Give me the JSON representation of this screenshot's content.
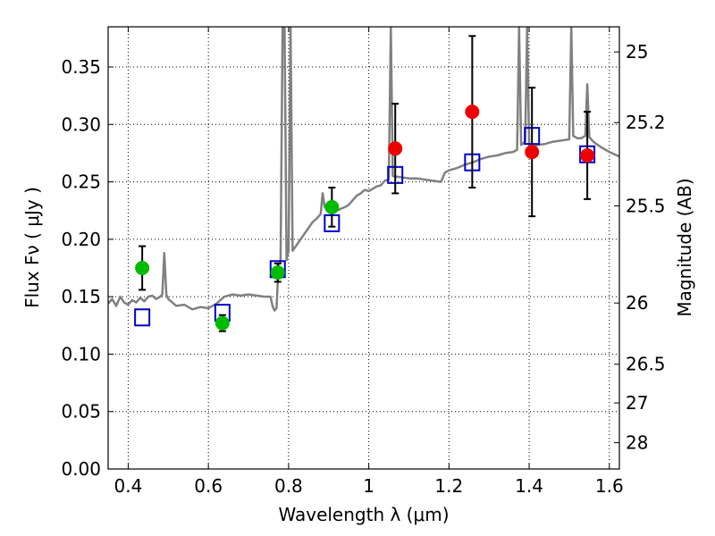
{
  "chart_data": {
    "type": "scatter",
    "xlabel": "Wavelength  λ (μm)",
    "ylabel": "Flux  Fν  ( μJy )",
    "ylabel_right": "Magnitude (AB)",
    "xlim": [
      0.35,
      1.625
    ],
    "ylim": [
      0.0,
      0.385
    ],
    "grid": true,
    "x_ticks": [
      {
        "value": 0.4,
        "label": "0.4"
      },
      {
        "value": 0.6,
        "label": "0.6"
      },
      {
        "value": 0.8,
        "label": "0.8"
      },
      {
        "value": 1.0,
        "label": "1"
      },
      {
        "value": 1.2,
        "label": "1.2"
      },
      {
        "value": 1.4,
        "label": "1.4"
      },
      {
        "value": 1.6,
        "label": "1.6"
      }
    ],
    "y_ticks": [
      {
        "value": 0.0,
        "label": "0.00"
      },
      {
        "value": 0.05,
        "label": "0.05"
      },
      {
        "value": 0.1,
        "label": "0.10"
      },
      {
        "value": 0.15,
        "label": "0.15"
      },
      {
        "value": 0.2,
        "label": "0.20"
      },
      {
        "value": 0.25,
        "label": "0.25"
      },
      {
        "value": 0.3,
        "label": "0.30"
      },
      {
        "value": 0.35,
        "label": "0.35"
      }
    ],
    "right_ticks": [
      {
        "flux": 0.3631,
        "label": "25"
      },
      {
        "flux": 0.3016,
        "label": "25.2"
      },
      {
        "flux": 0.2291,
        "label": "25.5"
      },
      {
        "flux": 0.1445,
        "label": "26"
      },
      {
        "flux": 0.0912,
        "label": "26.5"
      },
      {
        "flux": 0.0575,
        "label": "27"
      },
      {
        "flux": 0.0229,
        "label": "28"
      }
    ],
    "series": [
      {
        "kind": "line",
        "color": "#808080",
        "points": [
          [
            0.35,
            0.144
          ],
          [
            0.36,
            0.148
          ],
          [
            0.37,
            0.142
          ],
          [
            0.38,
            0.15
          ],
          [
            0.39,
            0.145
          ],
          [
            0.4,
            0.143
          ],
          [
            0.41,
            0.147
          ],
          [
            0.42,
            0.145
          ],
          [
            0.43,
            0.149
          ],
          [
            0.44,
            0.146
          ],
          [
            0.45,
            0.15
          ],
          [
            0.46,
            0.151
          ],
          [
            0.47,
            0.148
          ],
          [
            0.48,
            0.15
          ],
          [
            0.485,
            0.152
          ],
          [
            0.49,
            0.188
          ],
          [
            0.495,
            0.152
          ],
          [
            0.5,
            0.148
          ],
          [
            0.52,
            0.142
          ],
          [
            0.54,
            0.143
          ],
          [
            0.56,
            0.139
          ],
          [
            0.58,
            0.141
          ],
          [
            0.6,
            0.14
          ],
          [
            0.62,
            0.144
          ],
          [
            0.64,
            0.15
          ],
          [
            0.66,
            0.152
          ],
          [
            0.68,
            0.151
          ],
          [
            0.7,
            0.152
          ],
          [
            0.72,
            0.151
          ],
          [
            0.74,
            0.15
          ],
          [
            0.755,
            0.15
          ],
          [
            0.76,
            0.142
          ],
          [
            0.765,
            0.138
          ],
          [
            0.77,
            0.14
          ],
          [
            0.775,
            0.178
          ],
          [
            0.78,
            0.18
          ],
          [
            0.785,
            0.385
          ],
          [
            0.79,
            0.385
          ],
          [
            0.795,
            0.182
          ],
          [
            0.8,
            0.19
          ],
          [
            0.805,
            0.385
          ],
          [
            0.81,
            0.19
          ],
          [
            0.82,
            0.195
          ],
          [
            0.83,
            0.2
          ],
          [
            0.84,
            0.205
          ],
          [
            0.85,
            0.21
          ],
          [
            0.86,
            0.215
          ],
          [
            0.87,
            0.218
          ],
          [
            0.88,
            0.222
          ],
          [
            0.885,
            0.24
          ],
          [
            0.89,
            0.228
          ],
          [
            0.9,
            0.226
          ],
          [
            0.92,
            0.225
          ],
          [
            0.94,
            0.228
          ],
          [
            0.95,
            0.23
          ],
          [
            0.96,
            0.234
          ],
          [
            0.97,
            0.238
          ],
          [
            0.98,
            0.24
          ],
          [
            0.99,
            0.243
          ],
          [
            1.0,
            0.242
          ],
          [
            1.01,
            0.244
          ],
          [
            1.02,
            0.246
          ],
          [
            1.03,
            0.247
          ],
          [
            1.04,
            0.251
          ],
          [
            1.05,
            0.252
          ],
          [
            1.055,
            0.385
          ],
          [
            1.06,
            0.255
          ],
          [
            1.08,
            0.254
          ],
          [
            1.1,
            0.253
          ],
          [
            1.12,
            0.253
          ],
          [
            1.14,
            0.252
          ],
          [
            1.16,
            0.251
          ],
          [
            1.18,
            0.25
          ],
          [
            1.19,
            0.258
          ],
          [
            1.2,
            0.26
          ],
          [
            1.22,
            0.262
          ],
          [
            1.24,
            0.265
          ],
          [
            1.26,
            0.267
          ],
          [
            1.28,
            0.27
          ],
          [
            1.3,
            0.272
          ],
          [
            1.32,
            0.273
          ],
          [
            1.34,
            0.275
          ],
          [
            1.36,
            0.276
          ],
          [
            1.37,
            0.278
          ],
          [
            1.375,
            0.385
          ],
          [
            1.38,
            0.282
          ],
          [
            1.39,
            0.285
          ],
          [
            1.395,
            0.385
          ],
          [
            1.4,
            0.28
          ],
          [
            1.42,
            0.282
          ],
          [
            1.44,
            0.283
          ],
          [
            1.46,
            0.285
          ],
          [
            1.48,
            0.286
          ],
          [
            1.5,
            0.287
          ],
          [
            1.505,
            0.385
          ],
          [
            1.51,
            0.29
          ],
          [
            1.52,
            0.288
          ],
          [
            1.53,
            0.288
          ],
          [
            1.54,
            0.29
          ],
          [
            1.545,
            0.335
          ],
          [
            1.55,
            0.289
          ],
          [
            1.56,
            0.285
          ],
          [
            1.58,
            0.28
          ],
          [
            1.6,
            0.276
          ],
          [
            1.625,
            0.272
          ]
        ]
      },
      {
        "kind": "open_square",
        "color": "#0000cc",
        "points": [
          [
            0.435,
            0.132
          ],
          [
            0.635,
            0.136
          ],
          [
            0.773,
            0.174
          ],
          [
            0.908,
            0.214
          ],
          [
            1.066,
            0.256
          ],
          [
            1.258,
            0.267
          ],
          [
            1.407,
            0.29
          ],
          [
            1.545,
            0.274
          ]
        ]
      },
      {
        "kind": "filled_circle",
        "color": "#00bb00",
        "points": [
          {
            "x": 0.435,
            "y": 0.175,
            "err": 0.019
          },
          {
            "x": 0.635,
            "y": 0.127,
            "err": 0.007
          },
          {
            "x": 0.773,
            "y": 0.171,
            "err": 0.008
          },
          {
            "x": 0.908,
            "y": 0.228,
            "err": 0.017
          }
        ]
      },
      {
        "kind": "filled_circle",
        "color": "#ee0000",
        "points": [
          {
            "x": 1.066,
            "y": 0.279,
            "err": 0.039
          },
          {
            "x": 1.258,
            "y": 0.311,
            "err": 0.066
          },
          {
            "x": 1.407,
            "y": 0.276,
            "err": 0.056
          },
          {
            "x": 1.545,
            "y": 0.273,
            "err": 0.038
          }
        ]
      }
    ]
  }
}
